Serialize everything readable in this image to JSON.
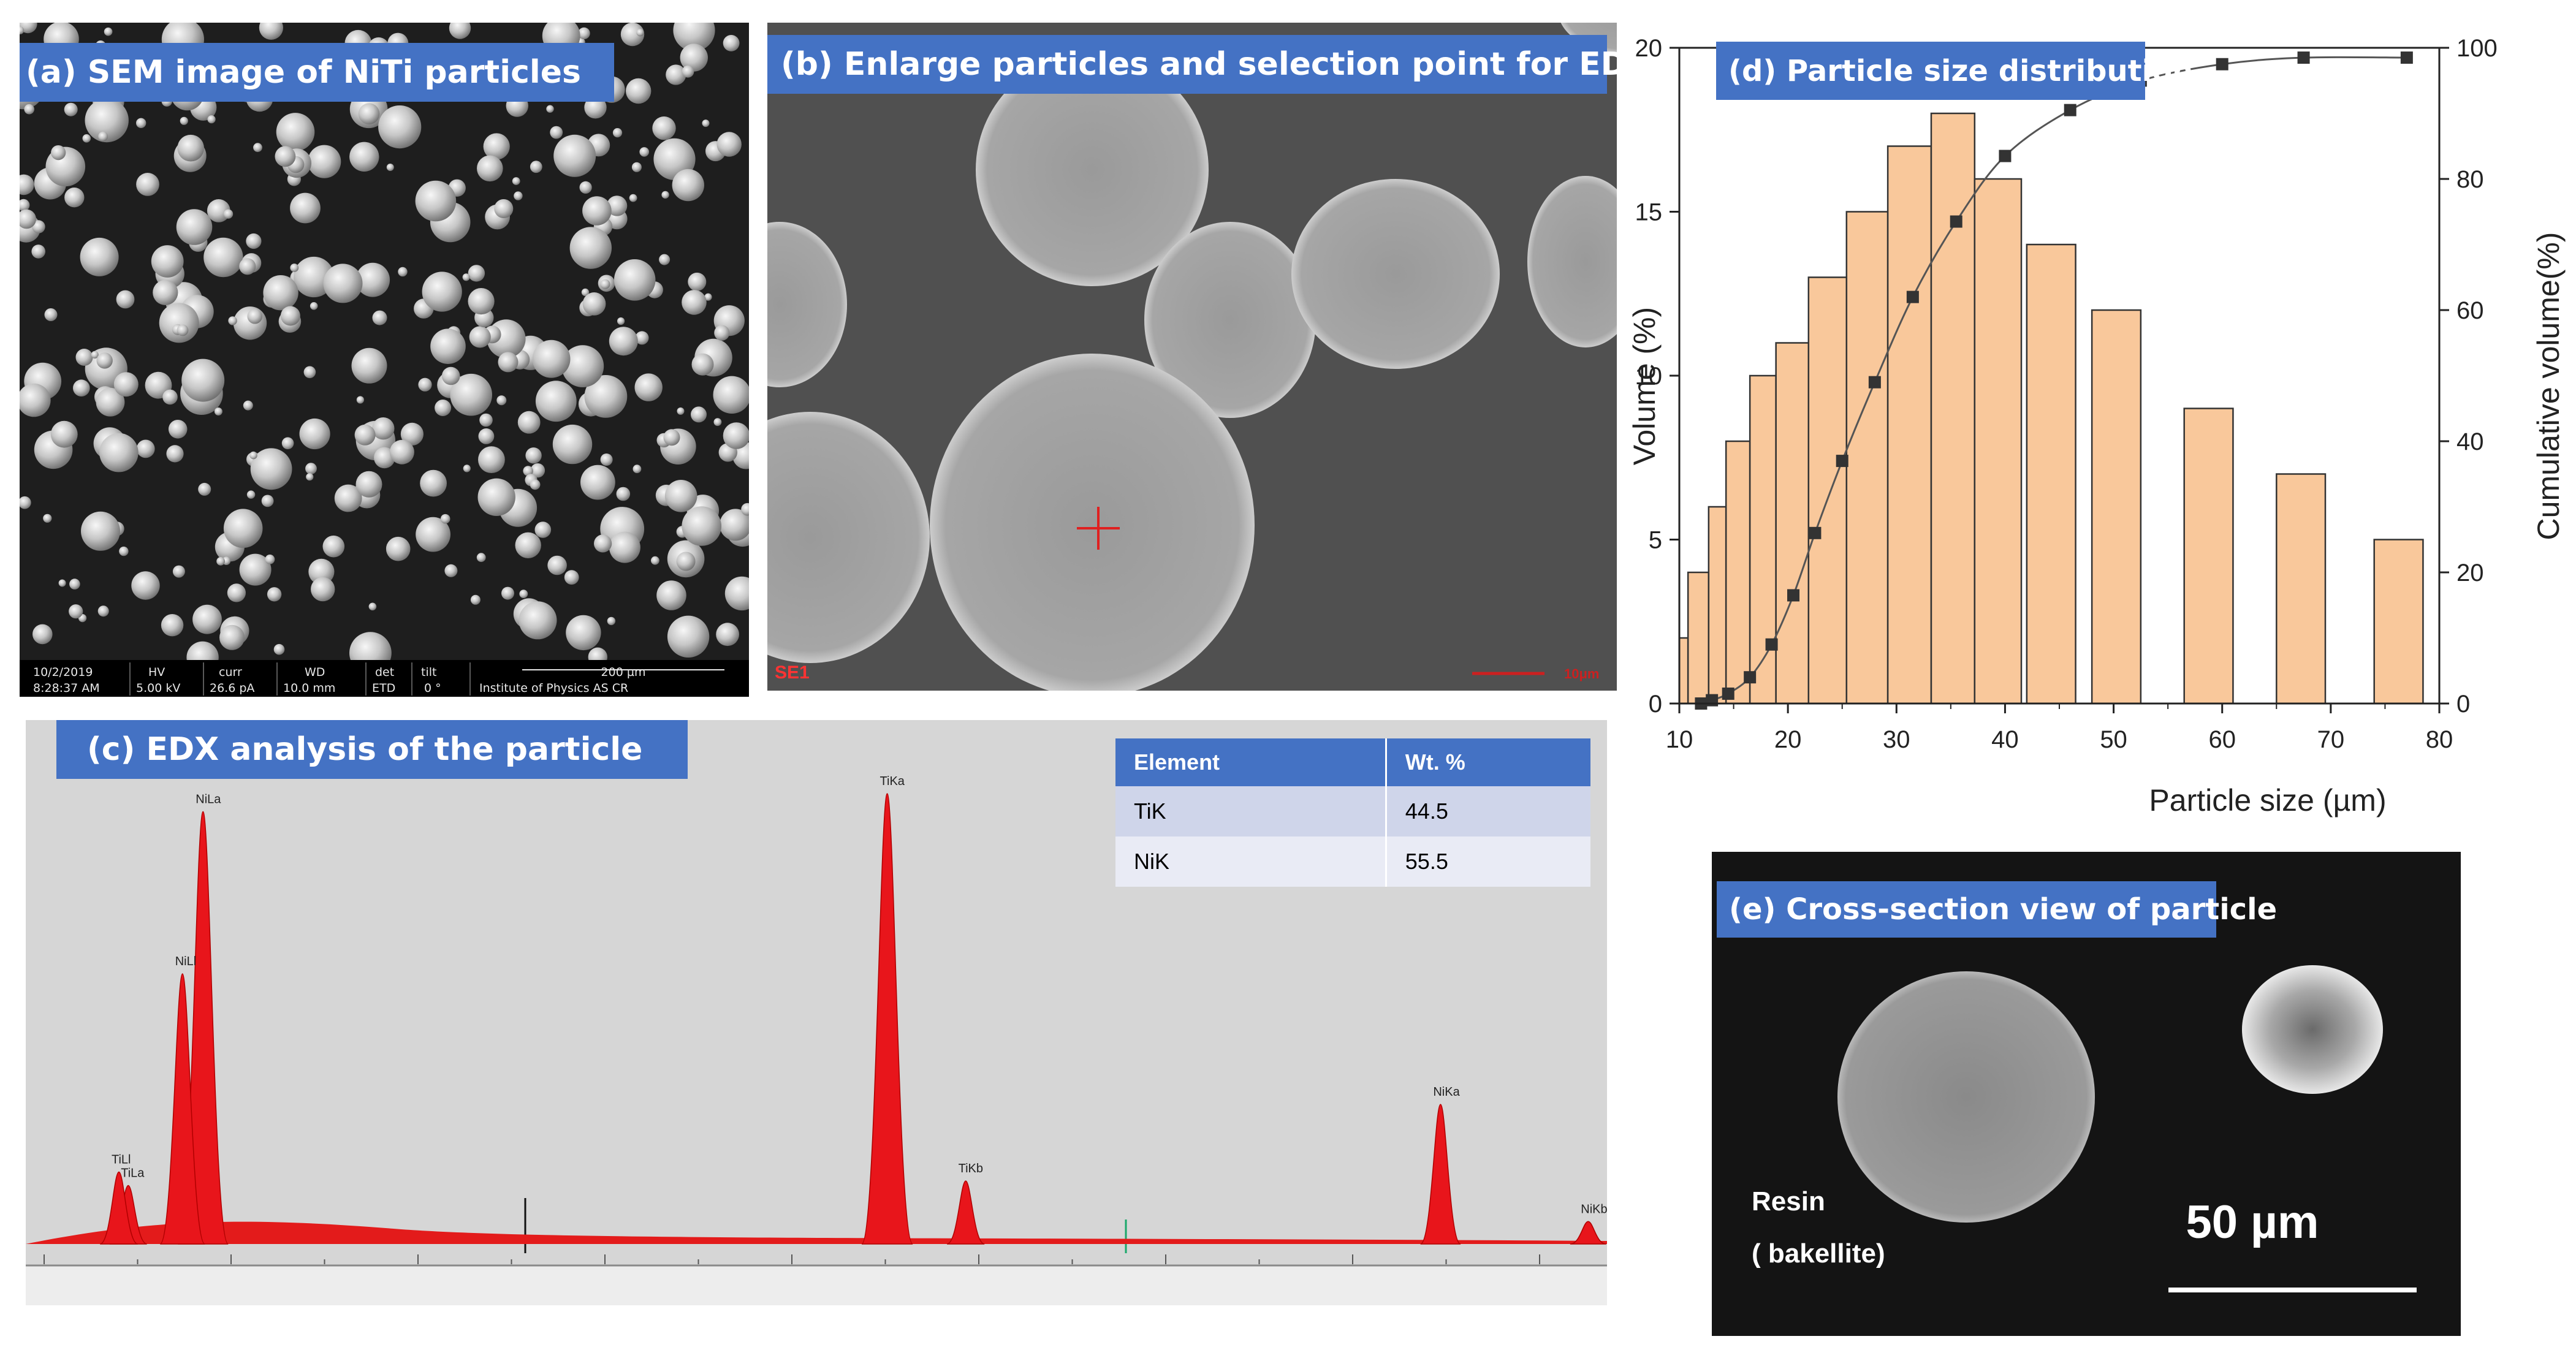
{
  "panels": {
    "a": {
      "label": "(a) SEM image of NiTi particles",
      "meta_headers": [
        "HV",
        "curr",
        "WD",
        "det",
        "tilt"
      ],
      "meta_date": "10/2/2019",
      "meta_time": "8:28:37 AM",
      "meta_values": [
        "5.00 kV",
        "26.6 pA",
        "10.0 mm",
        "ETD",
        "0 °"
      ],
      "scale_label": "200 µm",
      "institute": "Institute of Physics AS CR"
    },
    "b": {
      "label": "(b) Enlarge particles and selection point for EDX",
      "corner_tag": "SE1",
      "scale_label": "10μm"
    },
    "c": {
      "label": "(c) EDX analysis of the particle",
      "table": {
        "headers": [
          "Element",
          "Wt. %"
        ],
        "rows": [
          [
            "TiK",
            "44.5"
          ],
          [
            "NiK",
            "55.5"
          ]
        ]
      },
      "peaks": [
        {
          "label": "NiLa",
          "energy": 0.85,
          "height": 0.96
        },
        {
          "label": "NiLl",
          "energy": 0.74,
          "height": 0.6
        },
        {
          "label": "TiLa",
          "energy": 0.45,
          "height": 0.13
        },
        {
          "label": "TiLl",
          "energy": 0.4,
          "height": 0.16
        },
        {
          "label": "TiKa",
          "energy": 4.51,
          "height": 1.0
        },
        {
          "label": "TiKb",
          "energy": 4.93,
          "height": 0.14
        },
        {
          "label": "NiKa",
          "energy": 7.47,
          "height": 0.31
        },
        {
          "label": "NiKb",
          "energy": 8.26,
          "height": 0.05
        }
      ]
    },
    "d": {
      "label": "(d) Particle size distribution"
    },
    "e": {
      "label": "(e) Cross-section view of particle",
      "resin_line1": "Resin",
      "resin_line2": "( bakellite)",
      "scale_label": "50 µm"
    }
  },
  "chart_data": {
    "type": "bar",
    "title": "(d) Particle size distribution",
    "xlabel": "Particle size (µm)",
    "ylabel": "Volume (%)",
    "y2label": "Cumulative volume(%)",
    "xlim": [
      10,
      80
    ],
    "ylim": [
      0,
      20
    ],
    "y2lim": [
      0,
      100
    ],
    "xticks": [
      10,
      20,
      30,
      40,
      50,
      60,
      70,
      80
    ],
    "yticks": [
      0,
      5,
      10,
      15,
      20
    ],
    "y2ticks": [
      0,
      20,
      40,
      60,
      80,
      100
    ],
    "bars": [
      {
        "x0": 10.0,
        "x1": 10.8,
        "value": 2
      },
      {
        "x0": 10.8,
        "x1": 12.7,
        "value": 4
      },
      {
        "x0": 12.7,
        "x1": 14.3,
        "value": 6
      },
      {
        "x0": 14.3,
        "x1": 16.5,
        "value": 8
      },
      {
        "x0": 16.5,
        "x1": 18.9,
        "value": 10
      },
      {
        "x0": 18.9,
        "x1": 21.9,
        "value": 11
      },
      {
        "x0": 21.9,
        "x1": 25.4,
        "value": 13
      },
      {
        "x0": 25.4,
        "x1": 29.2,
        "value": 15
      },
      {
        "x0": 29.2,
        "x1": 33.2,
        "value": 17
      },
      {
        "x0": 33.2,
        "x1": 37.2,
        "value": 18
      },
      {
        "x0": 37.2,
        "x1": 41.5,
        "value": 16
      },
      {
        "x0": 42.0,
        "x1": 46.5,
        "value": 14
      },
      {
        "x0": 48.0,
        "x1": 52.5,
        "value": 12
      },
      {
        "x0": 56.5,
        "x1": 61.0,
        "value": 9
      },
      {
        "x0": 65.0,
        "x1": 69.5,
        "value": 7
      },
      {
        "x0": 74.0,
        "x1": 78.5,
        "value": 5
      }
    ],
    "cumulative": {
      "x": [
        12.0,
        13.0,
        14.5,
        16.5,
        18.5,
        20.5,
        22.5,
        25.0,
        28.0,
        31.5,
        35.5,
        40.0,
        46.0,
        52.5,
        60.0,
        67.5,
        77.0
      ],
      "y": [
        0,
        0.5,
        1.5,
        4,
        9,
        16.5,
        26,
        37,
        49,
        62,
        73.5,
        83.5,
        90.5,
        95,
        97.5,
        98.5,
        98.5
      ]
    },
    "bar_color": "#f9c89b",
    "bar_edge": "#333333"
  }
}
